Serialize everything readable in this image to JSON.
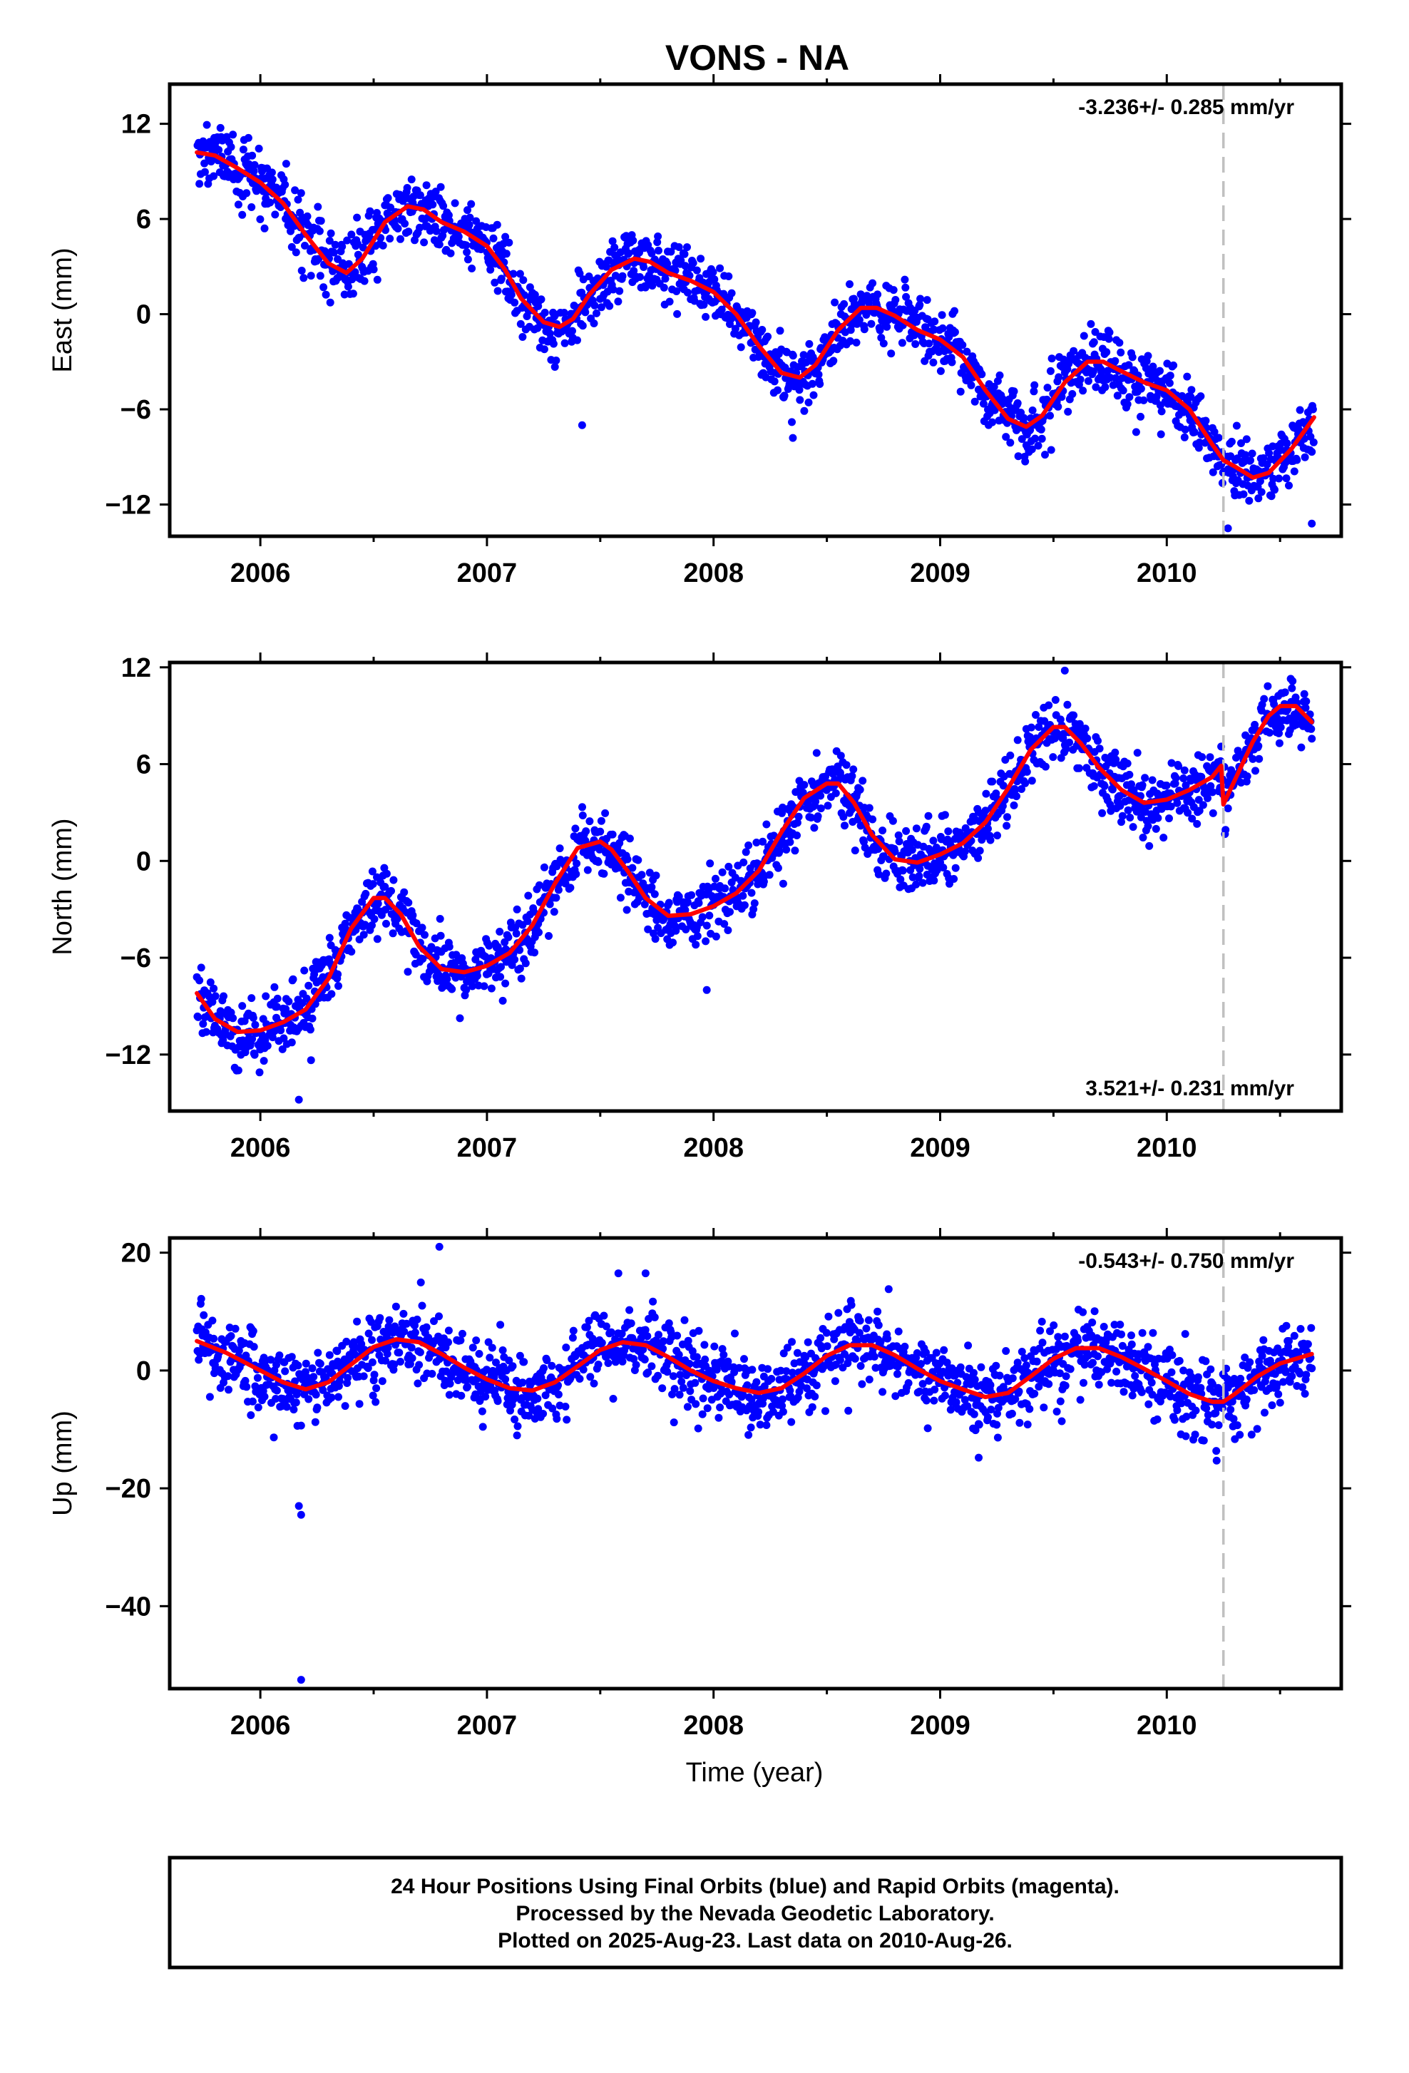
{
  "title": "VONS - NA",
  "x_axis_label": "Time (year)",
  "footer": {
    "line1": "24 Hour Positions Using Final Orbits (blue) and Rapid Orbits (magenta).",
    "line2": "Processed by the Nevada Geodetic Laboratory.",
    "line3": "Plotted on 2025-Aug-23. Last data on 2010-Aug-26."
  },
  "colors": {
    "final_orbits": "#0000ff",
    "model": "#ff0000",
    "event_marker": "#c0c0c0",
    "frame": "#000000"
  },
  "chart_data": [
    {
      "type": "scatter",
      "panel": "east",
      "ylabel": "East (mm)",
      "xlim": [
        2005.6,
        2010.77
      ],
      "ylim": [
        -14,
        14.5
      ],
      "x_ticks": [
        2006,
        2007,
        2008,
        2009,
        2010
      ],
      "y_ticks": [
        12,
        6,
        0,
        -6,
        -12
      ],
      "rate_text": "-3.236+/- 0.285 mm/yr",
      "rate_position": "top-right",
      "event_line_x": 2010.25,
      "model": {
        "x": [
          2005.72,
          2005.8,
          2005.9,
          2006.0,
          2006.1,
          2006.2,
          2006.3,
          2006.38,
          2006.45,
          2006.55,
          2006.65,
          2006.72,
          2006.8,
          2006.9,
          2007.0,
          2007.08,
          2007.15,
          2007.25,
          2007.32,
          2007.38,
          2007.45,
          2007.55,
          2007.65,
          2007.72,
          2007.8,
          2007.9,
          2008.0,
          2008.1,
          2008.2,
          2008.3,
          2008.38,
          2008.45,
          2008.55,
          2008.65,
          2008.72,
          2008.8,
          2008.9,
          2009.0,
          2009.1,
          2009.2,
          2009.3,
          2009.38,
          2009.45,
          2009.55,
          2009.65,
          2009.72,
          2009.8,
          2009.9,
          2010.0,
          2010.1,
          2010.2,
          2010.25,
          2010.3,
          2010.38,
          2010.45,
          2010.55,
          2010.65
        ],
        "y": [
          10.2,
          10.0,
          9.2,
          8.3,
          7.0,
          5.0,
          3.2,
          2.6,
          3.5,
          5.8,
          6.8,
          6.6,
          5.8,
          5.2,
          4.3,
          2.8,
          1.0,
          -0.5,
          -0.8,
          -0.3,
          1.2,
          2.8,
          3.5,
          3.3,
          2.6,
          2.1,
          1.4,
          0.0,
          -2.0,
          -3.7,
          -4.0,
          -3.2,
          -1.0,
          0.4,
          0.4,
          -0.1,
          -1.0,
          -1.6,
          -2.7,
          -4.8,
          -6.6,
          -7.1,
          -6.4,
          -4.3,
          -3.0,
          -3.0,
          -3.6,
          -4.3,
          -4.8,
          -6.0,
          -8.2,
          -9.2,
          -9.6,
          -10.3,
          -10.0,
          -8.5,
          -6.5
        ]
      },
      "outliers": [
        {
          "x": 2007.42,
          "y": -7.0
        },
        {
          "x": 2008.35,
          "y": -7.8
        },
        {
          "x": 2010.27,
          "y": -13.5
        },
        {
          "x": 2010.64,
          "y": -13.2
        }
      ],
      "scatter_std_mm": 1.0
    },
    {
      "type": "scatter",
      "panel": "north",
      "ylabel": "North (mm)",
      "xlim": [
        2005.6,
        2010.77
      ],
      "ylim": [
        -15.5,
        12.3
      ],
      "x_ticks": [
        2006,
        2007,
        2008,
        2009,
        2010
      ],
      "y_ticks": [
        12,
        6,
        0,
        -6,
        -12
      ],
      "rate_text": "3.521+/- 0.231 mm/yr",
      "rate_position": "bottom-right",
      "event_line_x": 2010.25,
      "model": {
        "x": [
          2005.72,
          2005.8,
          2005.9,
          2006.0,
          2006.1,
          2006.2,
          2006.3,
          2006.4,
          2006.5,
          2006.55,
          2006.62,
          2006.7,
          2006.8,
          2006.9,
          2007.0,
          2007.1,
          2007.2,
          2007.3,
          2007.4,
          2007.5,
          2007.55,
          2007.62,
          2007.7,
          2007.8,
          2007.9,
          2008.0,
          2008.1,
          2008.2,
          2008.3,
          2008.4,
          2008.5,
          2008.55,
          2008.62,
          2008.7,
          2008.8,
          2008.9,
          2009.0,
          2009.1,
          2009.2,
          2009.3,
          2009.4,
          2009.5,
          2009.55,
          2009.62,
          2009.7,
          2009.8,
          2009.9,
          2010.0,
          2010.1,
          2010.2,
          2010.24,
          2010.25,
          2010.3,
          2010.38,
          2010.45,
          2010.5,
          2010.57,
          2010.64
        ],
        "y": [
          -8.2,
          -9.8,
          -10.6,
          -10.5,
          -10.0,
          -9.2,
          -7.3,
          -4.2,
          -2.3,
          -2.3,
          -3.3,
          -5.3,
          -6.7,
          -6.9,
          -6.5,
          -5.7,
          -4.0,
          -1.4,
          0.8,
          1.2,
          0.7,
          -0.6,
          -2.3,
          -3.4,
          -3.3,
          -2.8,
          -2.0,
          -0.6,
          1.8,
          3.9,
          4.8,
          4.8,
          3.6,
          1.6,
          0.1,
          -0.1,
          0.4,
          1.1,
          2.4,
          4.5,
          6.9,
          8.3,
          8.3,
          7.3,
          5.8,
          4.4,
          3.6,
          3.8,
          4.4,
          5.2,
          5.9,
          3.5,
          5.0,
          7.4,
          9.0,
          9.6,
          9.6,
          8.6
        ]
      },
      "outliers": [
        {
          "x": 2006.17,
          "y": -14.8
        },
        {
          "x": 2007.97,
          "y": -8.0
        },
        {
          "x": 2009.55,
          "y": 11.8
        }
      ],
      "scatter_std_mm": 1.0
    },
    {
      "type": "scatter",
      "panel": "up",
      "ylabel": "Up (mm)",
      "xlim": [
        2005.6,
        2010.77
      ],
      "ylim": [
        -54,
        22.5
      ],
      "x_ticks": [
        2006,
        2007,
        2008,
        2009,
        2010
      ],
      "y_ticks": [
        20,
        0,
        -20,
        -40
      ],
      "rate_text": "-0.543+/- 0.750 mm/yr",
      "rate_position": "top-right",
      "event_line_x": 2010.25,
      "model": {
        "x": [
          2005.72,
          2005.85,
          2006.0,
          2006.1,
          2006.2,
          2006.3,
          2006.4,
          2006.5,
          2006.6,
          2006.7,
          2006.8,
          2006.9,
          2007.0,
          2007.1,
          2007.2,
          2007.3,
          2007.4,
          2007.5,
          2007.6,
          2007.7,
          2007.8,
          2007.9,
          2008.0,
          2008.1,
          2008.2,
          2008.3,
          2008.4,
          2008.5,
          2008.6,
          2008.7,
          2008.8,
          2008.9,
          2009.0,
          2009.1,
          2009.2,
          2009.3,
          2009.4,
          2009.5,
          2009.6,
          2009.7,
          2009.8,
          2009.9,
          2010.0,
          2010.1,
          2010.2,
          2010.25,
          2010.3,
          2010.4,
          2010.5,
          2010.64
        ],
        "y": [
          5.0,
          3.0,
          0.0,
          -2.0,
          -3.2,
          -2.0,
          1.0,
          4.0,
          5.3,
          4.8,
          2.8,
          0.5,
          -1.5,
          -3.0,
          -3.4,
          -2.0,
          0.7,
          3.5,
          4.8,
          4.3,
          2.3,
          0.0,
          -1.8,
          -3.0,
          -3.8,
          -3.0,
          -0.5,
          2.5,
          4.3,
          4.3,
          2.6,
          0.3,
          -1.8,
          -3.2,
          -4.5,
          -3.8,
          -1.0,
          2.0,
          3.8,
          3.8,
          2.3,
          0.3,
          -1.8,
          -4.0,
          -5.3,
          -5.3,
          -4.0,
          -1.0,
          1.2,
          2.8
        ]
      },
      "outliers": [
        {
          "x": 2006.17,
          "y": -23.0
        },
        {
          "x": 2006.18,
          "y": -24.5
        },
        {
          "x": 2006.18,
          "y": -52.5
        },
        {
          "x": 2006.79,
          "y": 21.0
        },
        {
          "x": 2007.58,
          "y": 16.5
        },
        {
          "x": 2007.7,
          "y": 16.5
        },
        {
          "x": 2009.17,
          "y": -14.8
        },
        {
          "x": 2010.22,
          "y": -15.3
        }
      ],
      "scatter_std_mm": 3.2
    }
  ]
}
